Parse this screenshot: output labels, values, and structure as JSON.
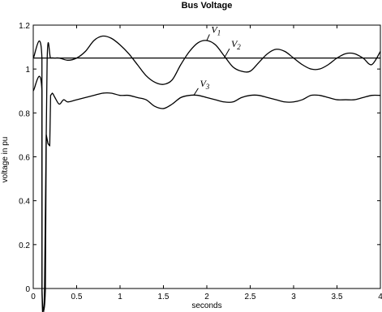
{
  "chart_data": {
    "type": "line",
    "title": "Bus Voltage",
    "xlabel": "seconds",
    "ylabel": "voltage in pu",
    "xlim": [
      0,
      4
    ],
    "ylim": [
      0,
      1.2
    ],
    "xticks": [
      0,
      0.5,
      1,
      1.5,
      2,
      2.5,
      3,
      3.5,
      4
    ],
    "xtick_labels": [
      "0",
      "0.5",
      "1",
      "1.5",
      "2",
      "2.5",
      "3",
      "3.5",
      "4"
    ],
    "yticks": [
      0,
      0.2,
      0.4,
      0.6,
      0.8,
      1,
      1.2
    ],
    "ytick_labels": [
      "0",
      "0.2",
      "0.4",
      "0.6",
      "0.8",
      "1",
      "1.2"
    ],
    "grid": false,
    "series": [
      {
        "name": "V1",
        "x": [
          0,
          0.1,
          0.101,
          0.13,
          0.16,
          0.2,
          0.25,
          0.3,
          0.4,
          0.5,
          0.6,
          0.7,
          0.8,
          0.9,
          1.0,
          1.1,
          1.2,
          1.3,
          1.4,
          1.5,
          1.6,
          1.7,
          1.8,
          1.9,
          2.0,
          2.1,
          2.2,
          2.3,
          2.4,
          2.5,
          2.6,
          2.7,
          2.8,
          2.9,
          3.0,
          3.1,
          3.2,
          3.3,
          3.4,
          3.5,
          3.6,
          3.7,
          3.8,
          3.9,
          4.0
        ],
        "values": [
          1.05,
          1.05,
          0.0,
          0.0,
          1.04,
          1.05,
          1.05,
          1.05,
          1.04,
          1.05,
          1.08,
          1.13,
          1.15,
          1.14,
          1.11,
          1.07,
          1.02,
          0.97,
          0.94,
          0.93,
          0.95,
          1.02,
          1.08,
          1.12,
          1.13,
          1.11,
          1.06,
          1.01,
          0.99,
          0.99,
          1.03,
          1.07,
          1.09,
          1.08,
          1.05,
          1.02,
          1.0,
          1.0,
          1.02,
          1.05,
          1.07,
          1.07,
          1.05,
          1.02,
          1.08
        ]
      },
      {
        "name": "V2",
        "x": [
          0,
          0.14,
          0.16,
          0.2,
          0.3,
          1.0,
          2.0,
          3.0,
          4.0
        ],
        "values": [
          1.05,
          1.05,
          1.05,
          1.05,
          1.05,
          1.05,
          1.05,
          1.05,
          1.05
        ]
      },
      {
        "name": "V3",
        "x": [
          0,
          0.1,
          0.101,
          0.14,
          0.15,
          0.17,
          0.19,
          0.2,
          0.22,
          0.25,
          0.3,
          0.35,
          0.4,
          0.5,
          0.6,
          0.7,
          0.8,
          0.9,
          1.0,
          1.1,
          1.2,
          1.3,
          1.4,
          1.5,
          1.6,
          1.7,
          1.8,
          1.9,
          2.0,
          2.1,
          2.2,
          2.3,
          2.4,
          2.5,
          2.6,
          2.7,
          2.8,
          2.9,
          3.0,
          3.1,
          3.2,
          3.3,
          3.4,
          3.5,
          3.6,
          3.7,
          3.8,
          3.9,
          4.0
        ],
        "values": [
          0.9,
          0.9,
          0.0,
          0.0,
          0.7,
          0.66,
          0.65,
          0.88,
          0.89,
          0.87,
          0.84,
          0.86,
          0.85,
          0.86,
          0.87,
          0.88,
          0.89,
          0.89,
          0.88,
          0.88,
          0.87,
          0.86,
          0.83,
          0.82,
          0.84,
          0.87,
          0.88,
          0.88,
          0.87,
          0.86,
          0.85,
          0.85,
          0.87,
          0.88,
          0.88,
          0.87,
          0.86,
          0.85,
          0.85,
          0.86,
          0.88,
          0.88,
          0.87,
          0.86,
          0.86,
          0.86,
          0.87,
          0.88,
          0.88
        ]
      }
    ],
    "annotations": [
      {
        "text": "V",
        "sub": "1",
        "x": 2.05,
        "y": 1.165,
        "target": [
          2.0,
          1.13
        ]
      },
      {
        "text": "V",
        "sub": "2",
        "x": 2.28,
        "y": 1.1,
        "target": [
          2.2,
          1.05
        ]
      },
      {
        "text": "V",
        "sub": "3",
        "x": 1.92,
        "y": 0.92,
        "target": [
          1.85,
          0.88
        ]
      }
    ]
  }
}
